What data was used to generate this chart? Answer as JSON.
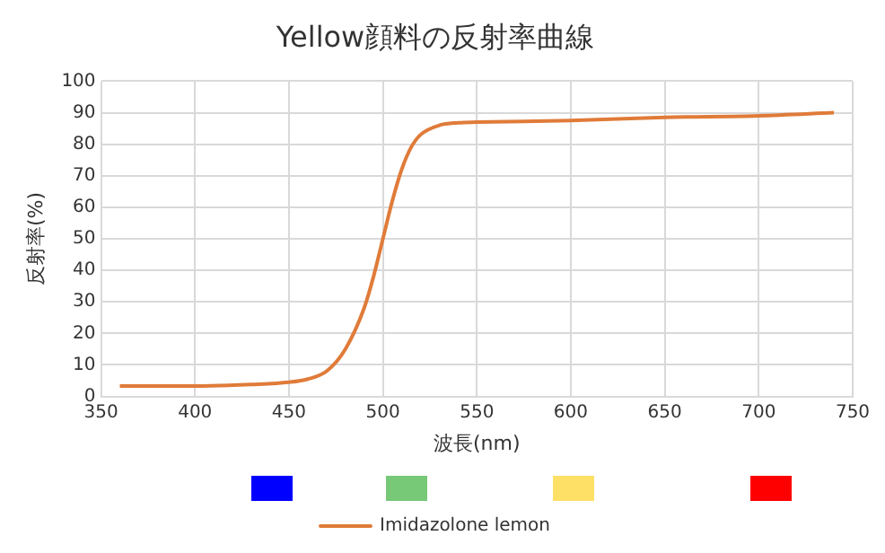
{
  "chart_data": {
    "type": "line",
    "title": "Yellow顔料の反射率曲線",
    "xlabel": "波長(nm)",
    "ylabel": "反射率(%)",
    "x": [
      360,
      400,
      430,
      450,
      460,
      470,
      480,
      490,
      495,
      500,
      505,
      510,
      515,
      520,
      530,
      540,
      550,
      600,
      650,
      700,
      740
    ],
    "series": [
      {
        "name": "Imidazolone lemon",
        "color": "#e07b39",
        "values": [
          3.3,
          3.3,
          3.8,
          4.5,
          5.5,
          8,
          15,
          28,
          38,
          50,
          62,
          72,
          79,
          83,
          86,
          86.8,
          87,
          87.5,
          88.5,
          89,
          90
        ]
      }
    ],
    "xlim": [
      350,
      750
    ],
    "xticks": [
      350,
      400,
      450,
      500,
      550,
      600,
      650,
      700,
      750
    ],
    "ylim": [
      0,
      100
    ],
    "yticks": [
      0,
      10,
      20,
      30,
      40,
      50,
      60,
      70,
      80,
      90,
      100
    ],
    "grid": true,
    "legend": "bottom",
    "marker": "none",
    "line_style": "solid"
  }
}
